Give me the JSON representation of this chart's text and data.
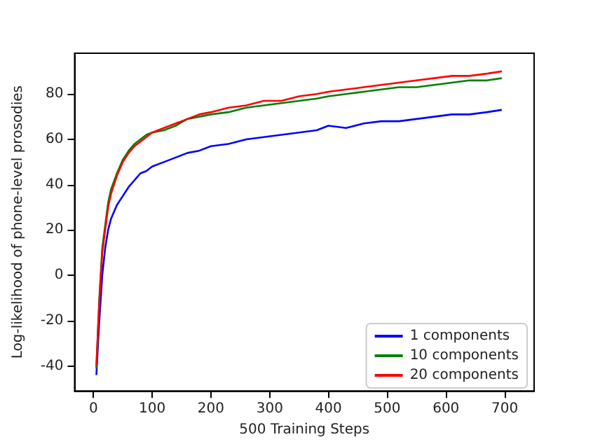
{
  "chart_data": {
    "type": "line",
    "xlabel": "500 Training Steps",
    "ylabel": "Log-likelihood of phone-level prosodies",
    "x": [
      5,
      10,
      15,
      20,
      25,
      30,
      40,
      50,
      60,
      70,
      80,
      90,
      100,
      120,
      140,
      160,
      180,
      200,
      230,
      260,
      290,
      320,
      350,
      380,
      400,
      430,
      460,
      490,
      520,
      550,
      580,
      610,
      640,
      670,
      695
    ],
    "series": [
      {
        "name": "1 components",
        "color": "#0000ff",
        "values": [
          -44,
          -20,
          0,
          12,
          20,
          25,
          31,
          35,
          39,
          42,
          45,
          46,
          48,
          50,
          52,
          54,
          55,
          57,
          58,
          60,
          61,
          62,
          63,
          64,
          66,
          65,
          67,
          68,
          68,
          69,
          70,
          71,
          71,
          72,
          73
        ]
      },
      {
        "name": "10 components",
        "color": "#008000",
        "values": [
          -41,
          -10,
          12,
          22,
          32,
          38,
          45,
          51,
          55,
          58,
          60,
          62,
          63,
          64,
          66,
          69,
          70,
          71,
          72,
          74,
          75,
          76,
          77,
          78,
          79,
          80,
          81,
          82,
          83,
          83,
          84,
          85,
          86,
          86,
          87
        ]
      },
      {
        "name": "20 components",
        "color": "#ff0000",
        "values": [
          -40,
          -12,
          10,
          20,
          30,
          36,
          44,
          50,
          54,
          57,
          59,
          61,
          63,
          65,
          67,
          69,
          71,
          72,
          74,
          75,
          77,
          77,
          79,
          80,
          81,
          82,
          83,
          84,
          85,
          86,
          87,
          88,
          88,
          89,
          90
        ]
      }
    ],
    "xlim": [
      -32,
      750
    ],
    "ylim": [
      -51,
      98
    ],
    "xticks": [
      0,
      100,
      200,
      300,
      400,
      500,
      600,
      700
    ],
    "yticks": [
      -40,
      -20,
      0,
      20,
      40,
      60,
      80
    ],
    "grid": false,
    "legend": "bottom right",
    "marker": "none",
    "line_style": "solid"
  }
}
